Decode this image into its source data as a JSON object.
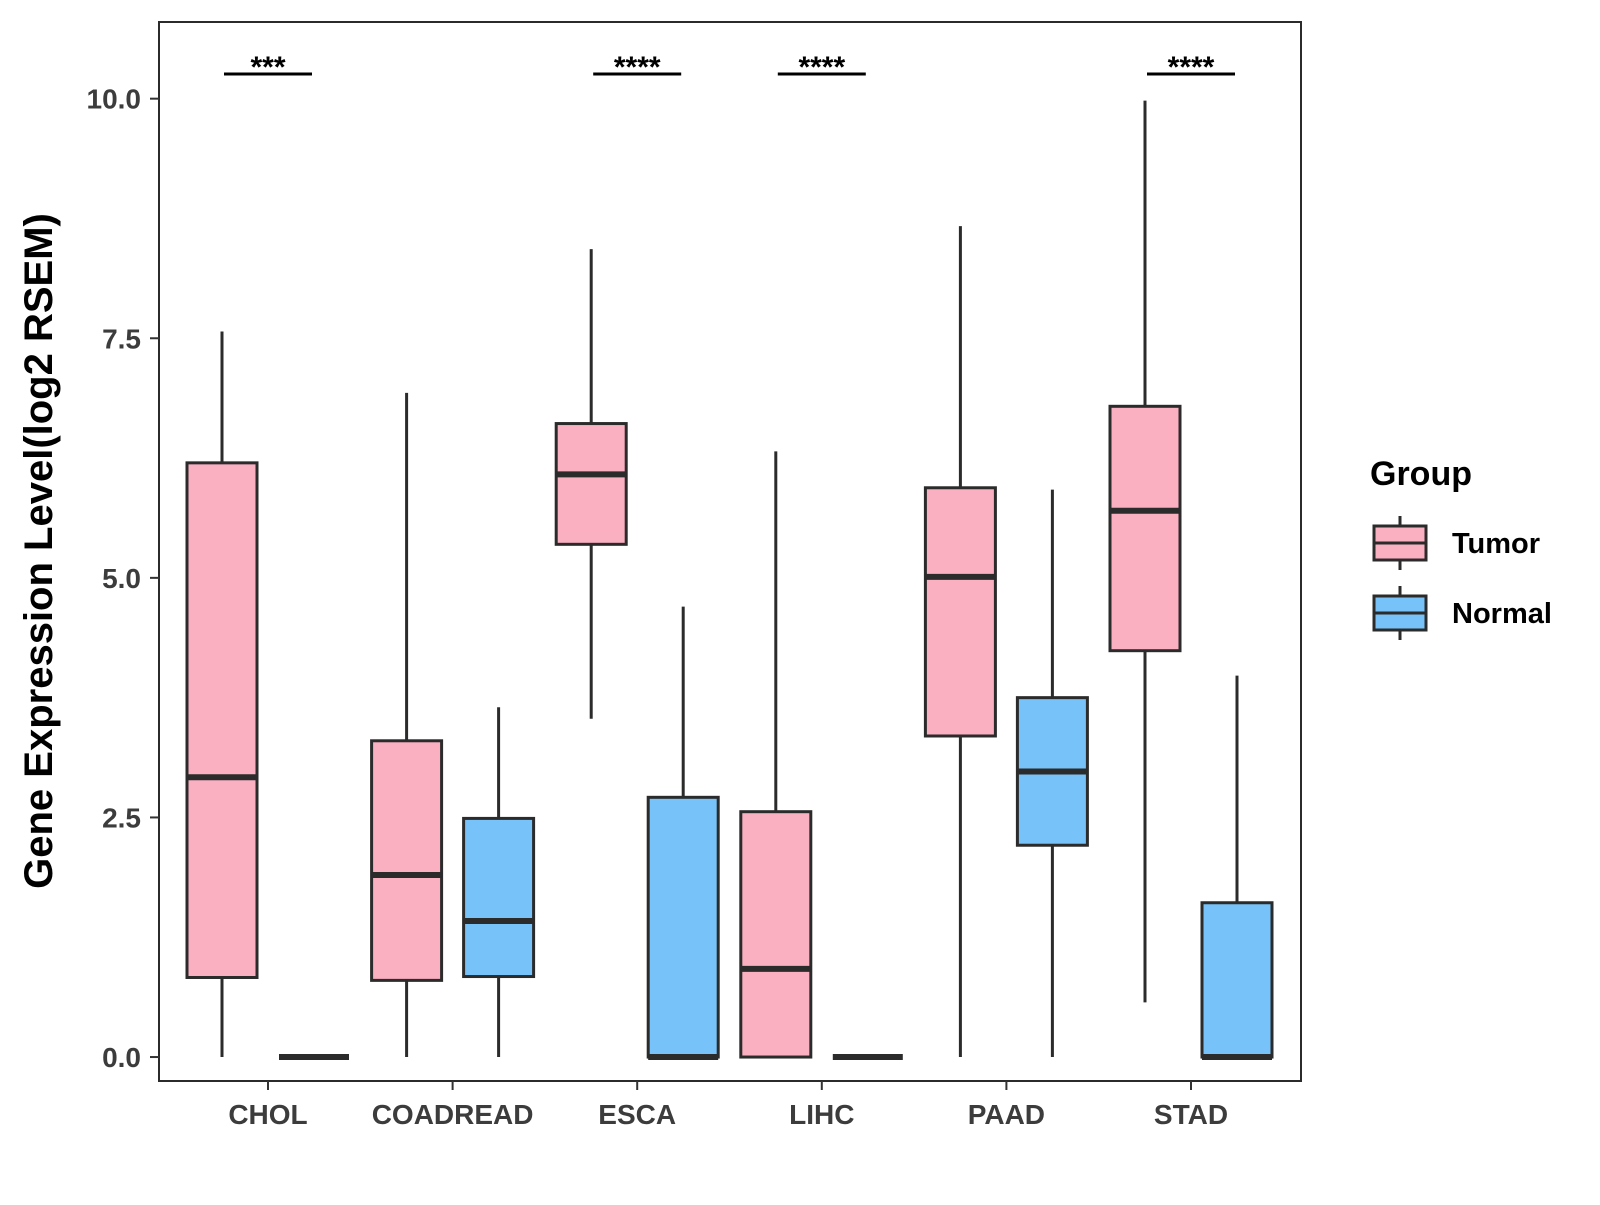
{
  "chart_data": {
    "type": "boxplot",
    "title": "",
    "xlabel": "",
    "ylabel": "Gene Expression Level(log2 RSEM)",
    "ylim": [
      -0.25,
      10.8
    ],
    "yticks": [
      0.0,
      2.5,
      5.0,
      7.5,
      10.0
    ],
    "ytick_labels": [
      "0.0",
      "2.5",
      "5.0",
      "7.5",
      "10.0"
    ],
    "categories": [
      "CHOL",
      "COADREAD",
      "ESCA",
      "LIHC",
      "PAAD",
      "STAD"
    ],
    "legend": {
      "title": "Group",
      "position": "right"
    },
    "series": [
      {
        "name": "Tumor",
        "color": "#fbb0c2",
        "boxes": [
          {
            "min": 0.0,
            "q1": 0.83,
            "median": 2.92,
            "q3": 6.2,
            "max": 7.57
          },
          {
            "min": 0.0,
            "q1": 0.8,
            "median": 1.9,
            "q3": 3.3,
            "max": 6.93
          },
          {
            "min": 3.53,
            "q1": 5.35,
            "median": 6.08,
            "q3": 6.61,
            "max": 8.43
          },
          {
            "min": 0.0,
            "q1": 0.0,
            "median": 0.92,
            "q3": 2.56,
            "max": 6.32
          },
          {
            "min": 0.0,
            "q1": 3.35,
            "median": 5.01,
            "q3": 5.94,
            "max": 8.67
          },
          {
            "min": 0.57,
            "q1": 4.24,
            "median": 5.7,
            "q3": 6.79,
            "max": 9.98
          }
        ]
      },
      {
        "name": "Normal",
        "color": "#77c2f8",
        "boxes": [
          {
            "min": 0.0,
            "q1": 0.0,
            "median": 0.0,
            "q3": 0.0,
            "max": 0.0
          },
          {
            "min": 0.0,
            "q1": 0.84,
            "median": 1.42,
            "q3": 2.49,
            "max": 3.65
          },
          {
            "min": 0.0,
            "q1": 0.0,
            "median": 0.0,
            "q3": 2.71,
            "max": 4.7
          },
          {
            "min": 0.0,
            "q1": 0.0,
            "median": 0.0,
            "q3": 0.0,
            "max": 0.0
          },
          {
            "min": 0.0,
            "q1": 2.21,
            "median": 2.98,
            "q3": 3.75,
            "max": 5.92
          },
          {
            "min": 0.0,
            "q1": 0.0,
            "median": 0.0,
            "q3": 1.61,
            "max": 3.98
          }
        ]
      }
    ],
    "annotations": [
      {
        "category": "CHOL",
        "text": "***"
      },
      {
        "category": "ESCA",
        "text": "****"
      },
      {
        "category": "LIHC",
        "text": "****"
      },
      {
        "category": "STAD",
        "text": "****"
      }
    ]
  }
}
